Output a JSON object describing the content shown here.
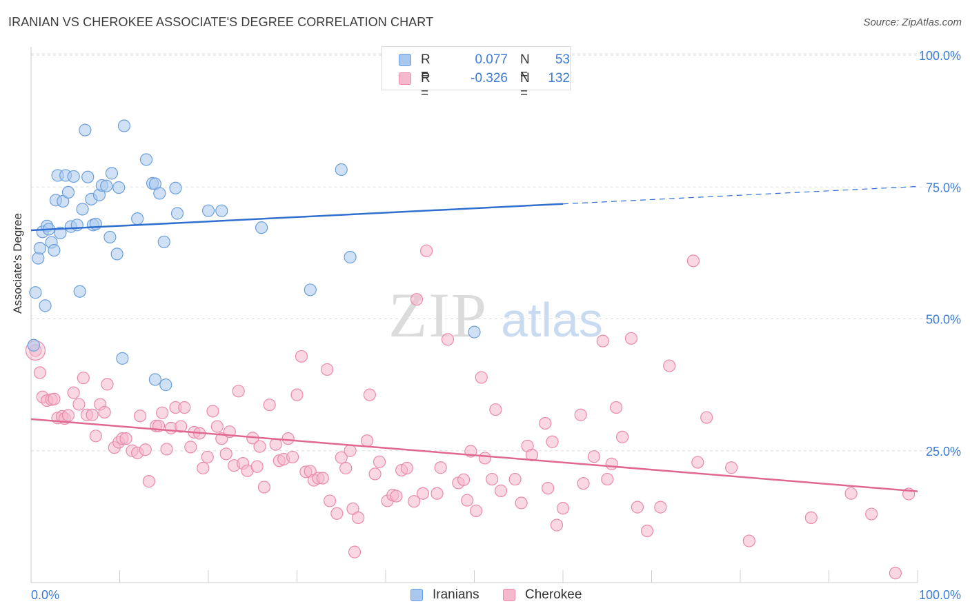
{
  "title": "IRANIAN VS CHEROKEE ASSOCIATE'S DEGREE CORRELATION CHART",
  "source": "Source: ZipAtlas.com",
  "watermark": {
    "zip": "ZIP",
    "atlas": "atlas"
  },
  "colors": {
    "iranians_fill": "#a9c8ef",
    "iranians_stroke": "#6a9fdc",
    "iranians_line": "#2f6fcf",
    "cherokee_fill": "#f6b8cc",
    "cherokee_stroke": "#e98aa8",
    "cherokee_line": "#e06890",
    "axis_label": "#3a7bd5",
    "grid": "#dddddd"
  },
  "legend": {
    "rows": [
      {
        "r_label": "R =",
        "r_value": "0.077",
        "n_label": "N =",
        "n_value": "53"
      },
      {
        "r_label": "R =",
        "r_value": "-0.326",
        "n_label": "N =",
        "n_value": "132"
      }
    ]
  },
  "chart_data": {
    "type": "scatter",
    "title": "IRANIAN VS CHEROKEE ASSOCIATE'S DEGREE CORRELATION CHART",
    "xlabel": "",
    "ylabel": "Associate's Degree",
    "xlim": [
      0,
      100
    ],
    "ylim": [
      0,
      100
    ],
    "x_tick_labels": [
      "0.0%",
      "100.0%"
    ],
    "y_tick_labels": [
      "25.0%",
      "50.0%",
      "75.0%",
      "100.0%"
    ],
    "y_ticks": [
      25,
      50,
      75,
      100
    ],
    "grid": true,
    "legend_position": "bottom",
    "series": [
      {
        "name": "Iranians",
        "r": 0.077,
        "n": 53,
        "trend": {
          "x0": 0,
          "y0": 66.8,
          "x1": 60,
          "y1": 71.8,
          "dashed_to_x": 100,
          "dashed_to_y": 75.1
        },
        "points": [
          [
            0.3,
            45.0
          ],
          [
            0.5,
            55.0
          ],
          [
            0.8,
            61.5
          ],
          [
            1.0,
            63.4
          ],
          [
            1.3,
            66.5
          ],
          [
            1.6,
            52.5
          ],
          [
            1.8,
            67.6
          ],
          [
            2.0,
            67.0
          ],
          [
            2.3,
            64.5
          ],
          [
            2.6,
            63.0
          ],
          [
            2.8,
            72.5
          ],
          [
            3.0,
            77.2
          ],
          [
            3.3,
            66.3
          ],
          [
            3.6,
            72.3
          ],
          [
            3.9,
            77.2
          ],
          [
            4.2,
            74.0
          ],
          [
            4.5,
            67.5
          ],
          [
            4.8,
            77.0
          ],
          [
            5.2,
            67.8
          ],
          [
            5.5,
            55.2
          ],
          [
            5.8,
            70.8
          ],
          [
            6.1,
            85.8
          ],
          [
            6.4,
            76.9
          ],
          [
            6.8,
            72.7
          ],
          [
            7.0,
            67.8
          ],
          [
            7.3,
            68.0
          ],
          [
            7.7,
            73.5
          ],
          [
            8.0,
            75.3
          ],
          [
            8.5,
            75.2
          ],
          [
            8.9,
            65.5
          ],
          [
            9.1,
            77.6
          ],
          [
            9.7,
            62.3
          ],
          [
            9.9,
            74.9
          ],
          [
            10.3,
            42.5
          ],
          [
            10.5,
            86.6
          ],
          [
            12.0,
            69.0
          ],
          [
            13.0,
            80.2
          ],
          [
            13.7,
            75.7
          ],
          [
            14.0,
            75.6
          ],
          [
            14.0,
            38.5
          ],
          [
            14.5,
            73.8
          ],
          [
            15.0,
            64.6
          ],
          [
            15.2,
            37.5
          ],
          [
            16.3,
            74.8
          ],
          [
            16.5,
            70.0
          ],
          [
            20.0,
            70.5
          ],
          [
            21.5,
            70.5
          ],
          [
            26.0,
            67.3
          ],
          [
            31.5,
            55.5
          ],
          [
            35.0,
            78.3
          ],
          [
            36.0,
            61.7
          ],
          [
            50.0,
            47.5
          ],
          [
            54.0,
            100.0
          ]
        ]
      },
      {
        "name": "Cherokee",
        "r": -0.326,
        "n": 132,
        "trend": {
          "x0": 0,
          "y0": 31.0,
          "x1": 100,
          "y1": 17.3
        },
        "points": [
          [
            0.5,
            44.0
          ],
          [
            1.0,
            39.8
          ],
          [
            1.3,
            35.2
          ],
          [
            1.8,
            34.5
          ],
          [
            2.3,
            34.7
          ],
          [
            2.6,
            34.8
          ],
          [
            3.0,
            31.2
          ],
          [
            3.5,
            31.5
          ],
          [
            3.8,
            31.1
          ],
          [
            4.2,
            31.7
          ],
          [
            4.8,
            36.0
          ],
          [
            5.4,
            33.8
          ],
          [
            5.9,
            38.8
          ],
          [
            6.3,
            31.8
          ],
          [
            6.9,
            31.8
          ],
          [
            7.3,
            27.8
          ],
          [
            7.8,
            33.8
          ],
          [
            8.3,
            32.3
          ],
          [
            8.6,
            37.6
          ],
          [
            9.4,
            25.6
          ],
          [
            9.9,
            26.6
          ],
          [
            10.3,
            27.3
          ],
          [
            10.7,
            27.3
          ],
          [
            11.4,
            25.0
          ],
          [
            12.0,
            24.6
          ],
          [
            12.3,
            31.6
          ],
          [
            12.9,
            25.2
          ],
          [
            13.3,
            19.2
          ],
          [
            14.1,
            29.7
          ],
          [
            14.4,
            29.7
          ],
          [
            14.8,
            32.2
          ],
          [
            15.3,
            25.3
          ],
          [
            15.8,
            29.3
          ],
          [
            16.3,
            33.2
          ],
          [
            16.9,
            29.6
          ],
          [
            17.3,
            33.2
          ],
          [
            18.0,
            25.7
          ],
          [
            18.4,
            28.5
          ],
          [
            19.0,
            28.3
          ],
          [
            19.4,
            21.7
          ],
          [
            19.9,
            23.8
          ],
          [
            20.5,
            32.5
          ],
          [
            21.0,
            29.6
          ],
          [
            21.5,
            27.3
          ],
          [
            22.0,
            24.4
          ],
          [
            22.4,
            28.6
          ],
          [
            22.9,
            22.2
          ],
          [
            23.4,
            36.3
          ],
          [
            23.9,
            22.6
          ],
          [
            24.4,
            21.2
          ],
          [
            25.0,
            27.4
          ],
          [
            25.5,
            22.0
          ],
          [
            25.8,
            25.8
          ],
          [
            26.3,
            18.1
          ],
          [
            26.9,
            33.7
          ],
          [
            27.6,
            26.2
          ],
          [
            28.0,
            23.1
          ],
          [
            28.5,
            23.4
          ],
          [
            29.0,
            27.3
          ],
          [
            29.5,
            23.8
          ],
          [
            30.0,
            35.6
          ],
          [
            30.5,
            42.9
          ],
          [
            31.0,
            21.0
          ],
          [
            31.5,
            21.1
          ],
          [
            31.9,
            19.4
          ],
          [
            32.4,
            19.8
          ],
          [
            32.9,
            19.8
          ],
          [
            33.4,
            40.4
          ],
          [
            33.7,
            15.5
          ],
          [
            34.5,
            13.1
          ],
          [
            35.0,
            23.7
          ],
          [
            35.5,
            21.7
          ],
          [
            36.0,
            25.0
          ],
          [
            36.3,
            14.0
          ],
          [
            36.5,
            5.8
          ],
          [
            36.9,
            12.3
          ],
          [
            37.9,
            26.9
          ],
          [
            38.2,
            35.6
          ],
          [
            38.8,
            20.6
          ],
          [
            39.3,
            22.9
          ],
          [
            40.2,
            15.5
          ],
          [
            40.8,
            16.6
          ],
          [
            41.2,
            16.4
          ],
          [
            41.8,
            21.3
          ],
          [
            42.4,
            21.7
          ],
          [
            43.2,
            15.4
          ],
          [
            43.5,
            53.7
          ],
          [
            44.2,
            16.9
          ],
          [
            44.6,
            62.9
          ],
          [
            45.8,
            16.9
          ],
          [
            46.2,
            21.8
          ],
          [
            47.0,
            46.1
          ],
          [
            48.2,
            18.9
          ],
          [
            48.8,
            19.5
          ],
          [
            49.2,
            15.6
          ],
          [
            49.6,
            24.9
          ],
          [
            50.2,
            13.6
          ],
          [
            50.8,
            38.9
          ],
          [
            51.2,
            23.6
          ],
          [
            52.0,
            19.6
          ],
          [
            52.4,
            32.8
          ],
          [
            53.0,
            17.4
          ],
          [
            54.6,
            19.6
          ],
          [
            55.3,
            15.1
          ],
          [
            56.0,
            25.9
          ],
          [
            56.5,
            24.2
          ],
          [
            58.0,
            30.2
          ],
          [
            58.3,
            17.9
          ],
          [
            58.8,
            26.7
          ],
          [
            59.3,
            10.9
          ],
          [
            60.0,
            14.1
          ],
          [
            62.0,
            31.8
          ],
          [
            62.3,
            18.8
          ],
          [
            63.5,
            23.9
          ],
          [
            64.5,
            45.8
          ],
          [
            65.0,
            19.6
          ],
          [
            65.5,
            22.5
          ],
          [
            66.0,
            33.2
          ],
          [
            66.7,
            27.6
          ],
          [
            67.7,
            46.3
          ],
          [
            68.4,
            14.3
          ],
          [
            69.5,
            9.8
          ],
          [
            71.0,
            14.3
          ],
          [
            72.0,
            41.1
          ],
          [
            74.7,
            61.0
          ],
          [
            75.2,
            22.8
          ],
          [
            76.2,
            31.3
          ],
          [
            79.0,
            21.8
          ],
          [
            81.0,
            7.9
          ],
          [
            88.0,
            12.3
          ],
          [
            92.5,
            16.9
          ],
          [
            94.8,
            13.0
          ],
          [
            97.5,
            1.8
          ],
          [
            99.0,
            16.8
          ]
        ]
      }
    ]
  },
  "bottom_legend": [
    {
      "label": "Iranians"
    },
    {
      "label": "Cherokee"
    }
  ]
}
